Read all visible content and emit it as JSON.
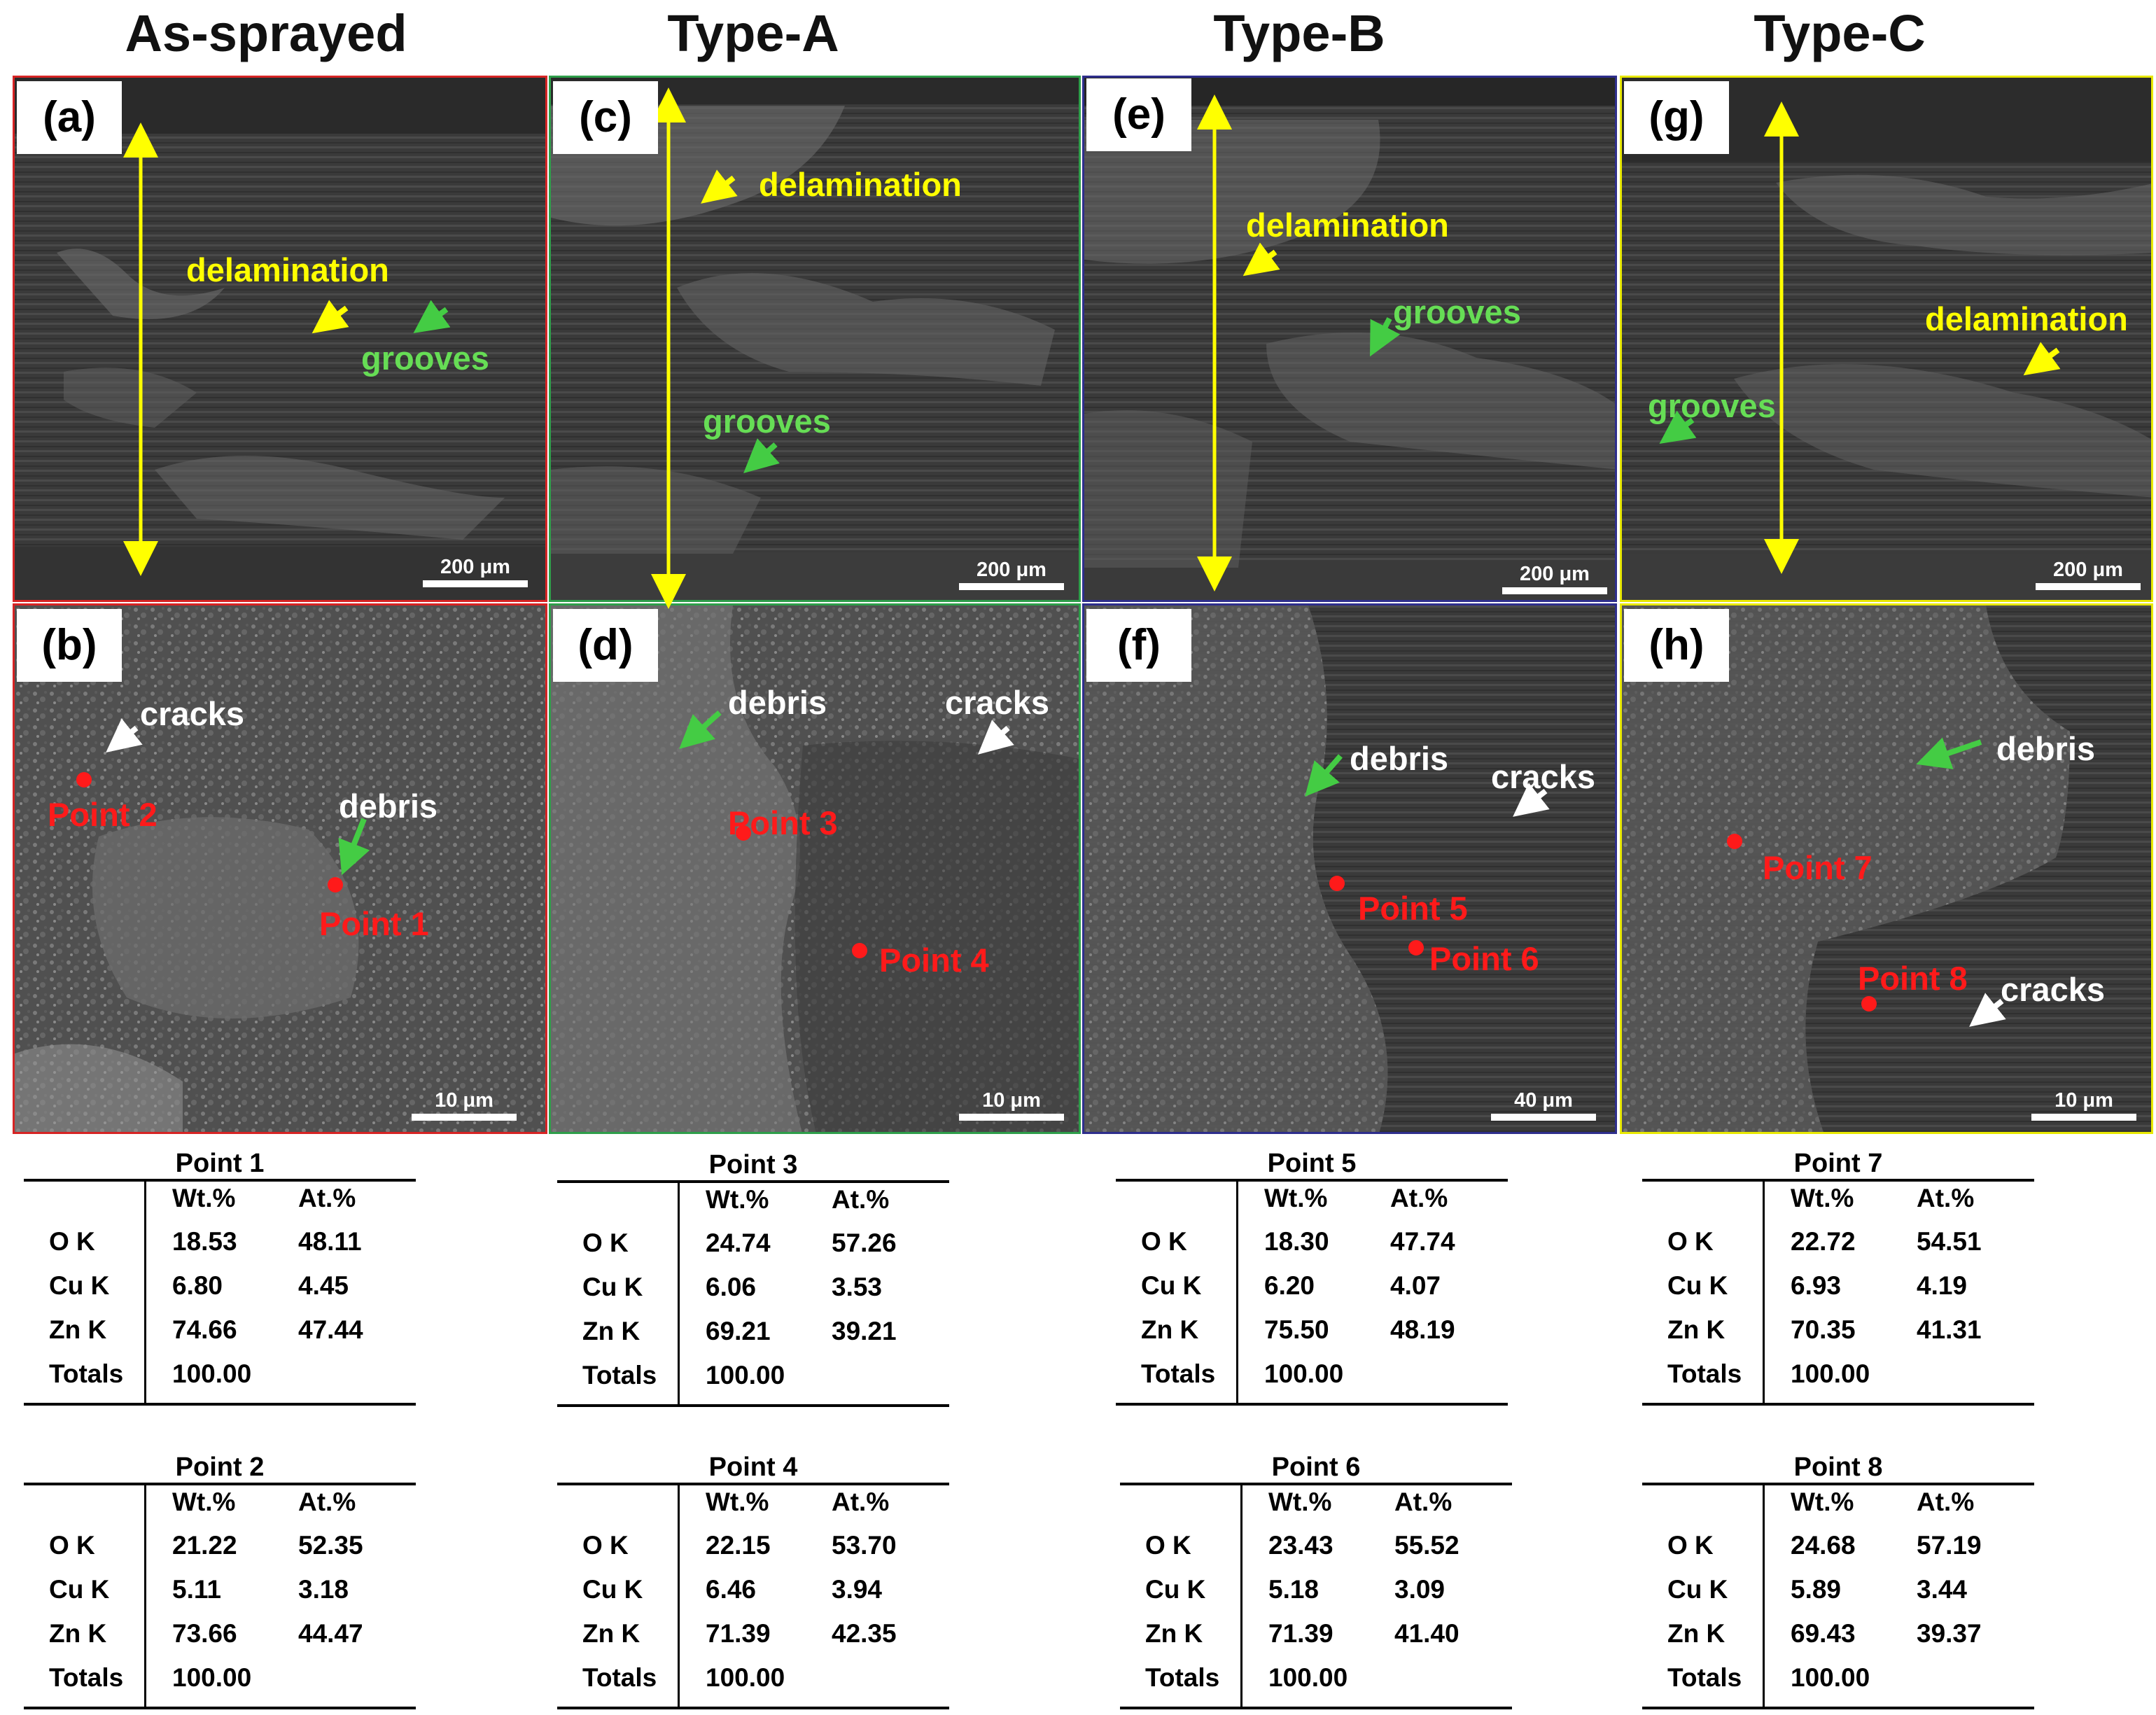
{
  "column_titles": [
    "As-sprayed",
    "Type-A",
    "Type-B",
    "Type-C"
  ],
  "panels": [
    {
      "label": "(a)",
      "scale": "200 μm",
      "annotations": [
        "delamination",
        "grooves"
      ]
    },
    {
      "label": "(b)",
      "scale": "10 μm",
      "annotations": [
        "cracks",
        "debris",
        "Point 2",
        "Point 1"
      ]
    },
    {
      "label": "(c)",
      "scale": "200 μm",
      "annotations": [
        "delamination",
        "grooves"
      ]
    },
    {
      "label": "(d)",
      "scale": "10 μm",
      "annotations": [
        "debris",
        "cracks",
        "Point 3",
        "Point 4"
      ]
    },
    {
      "label": "(e)",
      "scale": "200 μm",
      "annotations": [
        "delamination",
        "grooves"
      ]
    },
    {
      "label": "(f)",
      "scale": "40 μm",
      "annotations": [
        "debris",
        "cracks",
        "Point 5",
        "Point 6"
      ]
    },
    {
      "label": "(g)",
      "scale": "200 μm",
      "annotations": [
        "delamination",
        "grooves"
      ]
    },
    {
      "label": "(h)",
      "scale": "10 μm",
      "annotations": [
        "debris",
        "Point 7",
        "Point 8",
        "cracks"
      ]
    }
  ],
  "tables": [
    {
      "title": "Point 1",
      "headers": [
        "Wt.%",
        "At.%"
      ],
      "rows": [
        [
          "O K",
          "18.53",
          "48.11"
        ],
        [
          "Cu K",
          "6.80",
          "4.45"
        ],
        [
          "Zn K",
          "74.66",
          "47.44"
        ],
        [
          "Totals",
          "100.00",
          ""
        ]
      ]
    },
    {
      "title": "Point 2",
      "headers": [
        "Wt.%",
        "At.%"
      ],
      "rows": [
        [
          "O K",
          "21.22",
          "52.35"
        ],
        [
          "Cu K",
          "5.11",
          "3.18"
        ],
        [
          "Zn K",
          "73.66",
          "44.47"
        ],
        [
          "Totals",
          "100.00",
          ""
        ]
      ]
    },
    {
      "title": "Point 3",
      "headers": [
        "Wt.%",
        "At.%"
      ],
      "rows": [
        [
          "O K",
          "24.74",
          "57.26"
        ],
        [
          "Cu K",
          "6.06",
          "3.53"
        ],
        [
          "Zn K",
          "69.21",
          "39.21"
        ],
        [
          "Totals",
          "100.00",
          ""
        ]
      ]
    },
    {
      "title": "Point 4",
      "headers": [
        "Wt.%",
        "At.%"
      ],
      "rows": [
        [
          "O K",
          "22.15",
          "53.70"
        ],
        [
          "Cu K",
          "6.46",
          "3.94"
        ],
        [
          "Zn K",
          "71.39",
          "42.35"
        ],
        [
          "Totals",
          "100.00",
          ""
        ]
      ]
    },
    {
      "title": "Point 5",
      "headers": [
        "Wt.%",
        "At.%"
      ],
      "rows": [
        [
          "O K",
          "18.30",
          "47.74"
        ],
        [
          "Cu K",
          "6.20",
          "4.07"
        ],
        [
          "Zn K",
          "75.50",
          "48.19"
        ],
        [
          "Totals",
          "100.00",
          ""
        ]
      ]
    },
    {
      "title": "Point 6",
      "headers": [
        "Wt.%",
        "At.%"
      ],
      "rows": [
        [
          "O K",
          "23.43",
          "55.52"
        ],
        [
          "Cu K",
          "5.18",
          "3.09"
        ],
        [
          "Zn K",
          "71.39",
          "41.40"
        ],
        [
          "Totals",
          "100.00",
          ""
        ]
      ]
    },
    {
      "title": "Point 7",
      "headers": [
        "Wt.%",
        "At.%"
      ],
      "rows": [
        [
          "O K",
          "22.72",
          "54.51"
        ],
        [
          "Cu K",
          "6.93",
          "4.19"
        ],
        [
          "Zn K",
          "70.35",
          "41.31"
        ],
        [
          "Totals",
          "100.00",
          ""
        ]
      ]
    },
    {
      "title": "Point 8",
      "headers": [
        "Wt.%",
        "At.%"
      ],
      "rows": [
        [
          "O K",
          "24.68",
          "57.19"
        ],
        [
          "Cu K",
          "5.89",
          "3.44"
        ],
        [
          "Zn K",
          "69.43",
          "39.37"
        ],
        [
          "Totals",
          "100.00",
          ""
        ]
      ]
    }
  ],
  "colors": {
    "red": "#d62424",
    "green": "#2e9e4a",
    "blue": "#2e2e8c",
    "yellow": "#e8e800",
    "annotation_yellow": "#ffff00",
    "annotation_green": "#66dd55",
    "point_red": "#ff1a1a"
  }
}
